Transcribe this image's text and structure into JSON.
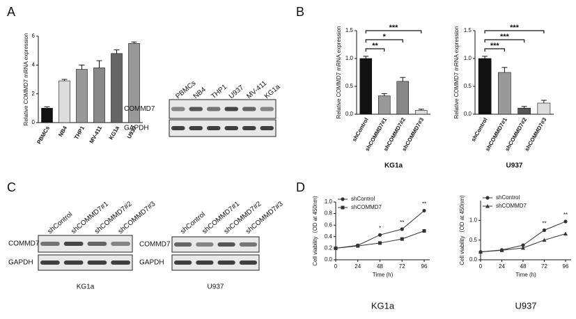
{
  "panel_labels": [
    "A",
    "B",
    "C",
    "D"
  ],
  "chart_data": [
    {
      "type": "bar",
      "ylabel": "Relative COMMD7 mRNA expression",
      "categories": [
        "PBMCs",
        "NB4",
        "THP1",
        "MV-411",
        "KG1a",
        "U937"
      ],
      "values": [
        1.0,
        2.9,
        3.7,
        3.8,
        4.8,
        5.5
      ],
      "errors": [
        0.1,
        0.1,
        0.3,
        0.5,
        0.25,
        0.1
      ],
      "colors": [
        "#111111",
        "#dddddd",
        "#999999",
        "#888888",
        "#666666",
        "#999999"
      ],
      "ylim": [
        0,
        6
      ],
      "yticks": [
        0,
        2,
        4,
        6
      ]
    },
    {
      "type": "bar",
      "ylabel": "Relative COMMD7 mRNA expression",
      "xlabel": "KG1a",
      "categories": [
        "shControl",
        "shCOMMD7#1",
        "shCOMMD7#2",
        "shCOMMD7#3"
      ],
      "values": [
        1.0,
        0.33,
        0.59,
        0.07
      ],
      "errors": [
        0.04,
        0.04,
        0.07,
        0.02
      ],
      "colors": [
        "#111111",
        "#999999",
        "#888888",
        "#dddddd"
      ],
      "ylim": [
        0,
        1.5
      ],
      "yticks": [
        {
          "value": 0,
          "label": "0.0"
        },
        0.5,
        {
          "value": 1,
          "label": "1.0"
        },
        1.5
      ],
      "annotations": [
        {
          "label": "**",
          "group": "shCOMMD7#1"
        },
        {
          "label": "*",
          "group": "shCOMMD7#2"
        },
        {
          "label": "***",
          "group": "shCOMMD7#3"
        }
      ]
    },
    {
      "type": "bar",
      "ylabel": "Relative COMMD7 mRNA expression",
      "xlabel": "U937",
      "categories": [
        "shControl",
        "shCOMMD7#1",
        "shCOMMD7#2",
        "shCOMMD7#3"
      ],
      "values": [
        1.0,
        0.75,
        0.11,
        0.2
      ],
      "errors": [
        0.04,
        0.09,
        0.03,
        0.05
      ],
      "colors": [
        "#111111",
        "#999999",
        "#555555",
        "#dddddd"
      ],
      "ylim": [
        0,
        1.5
      ],
      "yticks": [
        {
          "value": 0,
          "label": "0.0"
        },
        0.5,
        {
          "value": 1,
          "label": "1.0"
        },
        1.5
      ],
      "annotations": [
        {
          "label": "***",
          "group": "shCOMMD7#1"
        },
        {
          "label": "***",
          "group": "shCOMMD7#2"
        },
        {
          "label": "***",
          "group": "shCOMMD7#3"
        }
      ]
    },
    {
      "type": "line",
      "ylabel": "Cell viability（OD at 450nm)",
      "xlabel": "Time (h)",
      "caption": "KG1a",
      "x": [
        0,
        24,
        48,
        72,
        96
      ],
      "series": [
        {
          "name": "shControl",
          "color": "#333333",
          "marker": "circle",
          "values": [
            0.2,
            0.25,
            0.43,
            0.53,
            0.85
          ]
        },
        {
          "name": "shCOMMD7",
          "color": "#333333",
          "marker": "square",
          "values": [
            0.2,
            0.24,
            0.29,
            0.36,
            0.5
          ]
        }
      ],
      "xlim": [
        0,
        96
      ],
      "xticks": [
        0,
        24,
        48,
        72,
        96
      ],
      "ylim": [
        0,
        1.0
      ],
      "yticks": [
        {
          "value": 0,
          "label": "0.0"
        },
        0.2,
        0.4,
        0.6,
        0.8,
        {
          "value": 1,
          "label": "1.0"
        }
      ],
      "annotations": [
        {
          "label": "*",
          "x": 48
        },
        {
          "label": "**",
          "x": 72
        },
        {
          "label": "**",
          "x": 96
        }
      ]
    },
    {
      "type": "line",
      "ylabel": "Cell viability（OD at 450nm)",
      "xlabel": "Time (h)",
      "caption": "U937",
      "x": [
        0,
        24,
        48,
        72,
        96
      ],
      "series": [
        {
          "name": "shControl",
          "color": "#333333",
          "marker": "circle",
          "values": [
            0.2,
            0.25,
            0.37,
            0.75,
            0.97
          ]
        },
        {
          "name": "shCOMMD7",
          "color": "#333333",
          "marker": "triangle",
          "values": [
            0.2,
            0.24,
            0.3,
            0.5,
            0.66
          ]
        }
      ],
      "xlim": [
        0,
        96
      ],
      "xticks": [
        0,
        24,
        48,
        72,
        96
      ],
      "ylim": [
        0,
        1.5
      ],
      "yticks": [
        {
          "value": 0,
          "label": "0.0"
        },
        0.5,
        {
          "value": 1,
          "label": "1.0"
        }
      ],
      "annotations": [
        {
          "label": "**",
          "x": 72
        },
        {
          "label": "**",
          "x": 96
        }
      ]
    }
  ],
  "blots": [
    {
      "lanes": [
        "PBMCs",
        "NB4",
        "THP1",
        "U937",
        "MV-411",
        "KG1a"
      ],
      "rows": [
        "COMMD7",
        "GAPDH"
      ]
    },
    {
      "lanes": [
        "shControl",
        "shCOMMD7#1",
        "shCOMMD7#2",
        "shCOMMD7#3"
      ],
      "rows": [
        "COMMD7",
        "GAPDH"
      ],
      "caption": "KG1a"
    },
    {
      "lanes": [
        "shControl",
        "shCOMMD7#1",
        "shCOMMD7#2",
        "shCOMMD7#3"
      ],
      "rows": [
        "COMMD7",
        "GAPDH"
      ],
      "caption": "U937"
    }
  ]
}
